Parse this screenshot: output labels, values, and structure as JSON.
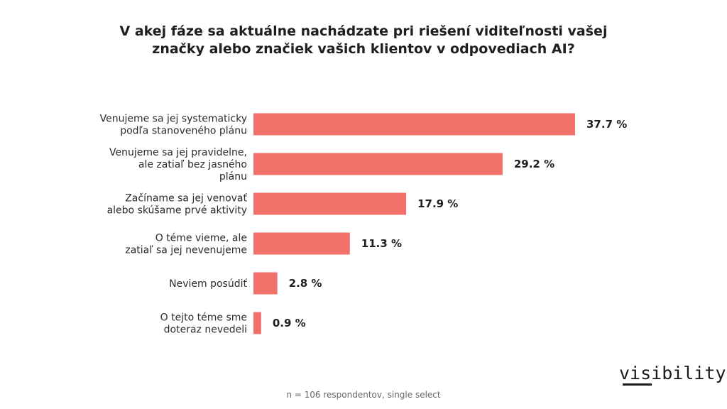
{
  "chart_data": {
    "type": "bar",
    "orientation": "horizontal",
    "title_lines": [
      "V akej fáze sa aktuálne nachádzate pri riešení viditeľnosti vašej",
      "značky alebo značiek vašich klientov v odpovediach AI?"
    ],
    "categories": [
      [
        "Venujeme sa jej systematicky",
        "podľa stanoveného plánu"
      ],
      [
        "Venujeme sa jej pravidelne,",
        "ale zatiaľ bez jasného",
        "plánu"
      ],
      [
        "Začíname sa jej venovať",
        "alebo skúšame prvé aktivity"
      ],
      [
        "O téme vieme, ale",
        "zatiaľ sa jej nevenujeme"
      ],
      [
        "Neviem posúdiť"
      ],
      [
        "O tejto téme sme",
        "doteraz nevedeli"
      ]
    ],
    "values": [
      37.7,
      29.2,
      17.9,
      11.3,
      2.8,
      0.9
    ],
    "value_labels": [
      "37.7 %",
      "29.2 %",
      "17.9 %",
      "11.3 %",
      "2.8 %",
      "0.9 %"
    ],
    "xlim": [
      0,
      37.7
    ],
    "bar_color": "#f2706a",
    "grid": false,
    "legend": "none"
  },
  "footnote": "n = 106 respondentov, single select",
  "brand": {
    "logo_text": "visibility"
  }
}
